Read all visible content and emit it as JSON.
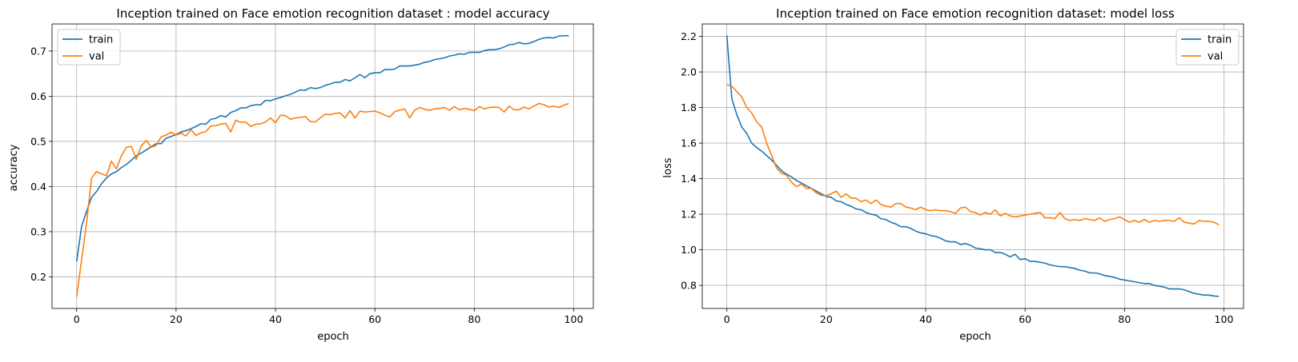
{
  "colors": {
    "train": "#1f77b4",
    "val": "#ff7f0e",
    "grid": "#b0b0b0"
  },
  "chart_data": [
    {
      "type": "line",
      "title": "Inception trained on Face emotion recognition dataset : model accuracy",
      "xlabel": "epoch",
      "ylabel": "accuracy",
      "xlim": [
        -4.95,
        103.95
      ],
      "ylim": [
        0.13,
        0.76
      ],
      "xticks": [
        0,
        20,
        40,
        60,
        80,
        100
      ],
      "yticks": [
        0.2,
        0.3,
        0.4,
        0.5,
        0.6,
        0.7
      ],
      "grid": true,
      "legend": "top-left",
      "series": [
        {
          "name": "train",
          "values": [
            0.234,
            0.312,
            0.345,
            0.376,
            0.389,
            0.406,
            0.419,
            0.428,
            0.433,
            0.442,
            0.449,
            0.458,
            0.468,
            0.474,
            0.481,
            0.488,
            0.495,
            0.495,
            0.507,
            0.511,
            0.515,
            0.521,
            0.524,
            0.528,
            0.533,
            0.539,
            0.538,
            0.549,
            0.551,
            0.557,
            0.554,
            0.564,
            0.568,
            0.574,
            0.574,
            0.579,
            0.581,
            0.581,
            0.591,
            0.59,
            0.594,
            0.597,
            0.601,
            0.604,
            0.609,
            0.614,
            0.613,
            0.619,
            0.617,
            0.619,
            0.624,
            0.627,
            0.631,
            0.631,
            0.637,
            0.634,
            0.641,
            0.648,
            0.641,
            0.65,
            0.652,
            0.652,
            0.659,
            0.659,
            0.66,
            0.667,
            0.667,
            0.667,
            0.669,
            0.671,
            0.675,
            0.677,
            0.681,
            0.683,
            0.685,
            0.689,
            0.691,
            0.694,
            0.693,
            0.697,
            0.697,
            0.697,
            0.701,
            0.703,
            0.703,
            0.705,
            0.709,
            0.714,
            0.715,
            0.719,
            0.716,
            0.717,
            0.721,
            0.726,
            0.729,
            0.73,
            0.729,
            0.733,
            0.734,
            0.734
          ]
        },
        {
          "name": "val",
          "values": [
            0.156,
            0.238,
            0.32,
            0.419,
            0.433,
            0.428,
            0.424,
            0.456,
            0.439,
            0.468,
            0.487,
            0.489,
            0.46,
            0.49,
            0.502,
            0.487,
            0.491,
            0.51,
            0.514,
            0.52,
            0.514,
            0.518,
            0.512,
            0.526,
            0.513,
            0.519,
            0.522,
            0.534,
            0.535,
            0.538,
            0.54,
            0.521,
            0.547,
            0.542,
            0.543,
            0.533,
            0.538,
            0.539,
            0.543,
            0.552,
            0.541,
            0.558,
            0.557,
            0.549,
            0.552,
            0.553,
            0.555,
            0.544,
            0.543,
            0.552,
            0.56,
            0.559,
            0.562,
            0.563,
            0.552,
            0.568,
            0.552,
            0.567,
            0.565,
            0.566,
            0.567,
            0.563,
            0.558,
            0.554,
            0.566,
            0.569,
            0.572,
            0.552,
            0.569,
            0.575,
            0.571,
            0.569,
            0.572,
            0.573,
            0.575,
            0.569,
            0.577,
            0.57,
            0.573,
            0.571,
            0.568,
            0.577,
            0.572,
            0.575,
            0.576,
            0.575,
            0.565,
            0.578,
            0.57,
            0.57,
            0.576,
            0.572,
            0.578,
            0.584,
            0.581,
            0.576,
            0.578,
            0.575,
            0.58,
            0.584
          ]
        }
      ]
    },
    {
      "type": "line",
      "title": "Inception trained on  Face emotion recognition dataset: model loss",
      "xlabel": "epoch",
      "ylabel": "loss",
      "xlim": [
        -4.95,
        103.95
      ],
      "ylim": [
        0.67,
        2.27
      ],
      "xticks": [
        0,
        20,
        40,
        60,
        80,
        100
      ],
      "yticks": [
        0.8,
        1.0,
        1.2,
        1.4,
        1.6,
        1.8,
        2.0,
        2.2
      ],
      "grid": true,
      "legend": "top-right",
      "series": [
        {
          "name": "train",
          "values": [
            2.205,
            1.85,
            1.76,
            1.69,
            1.655,
            1.6,
            1.575,
            1.555,
            1.53,
            1.505,
            1.475,
            1.445,
            1.425,
            1.41,
            1.39,
            1.375,
            1.36,
            1.345,
            1.33,
            1.315,
            1.3,
            1.295,
            1.275,
            1.27,
            1.255,
            1.245,
            1.23,
            1.225,
            1.21,
            1.2,
            1.195,
            1.175,
            1.17,
            1.155,
            1.145,
            1.13,
            1.13,
            1.12,
            1.105,
            1.095,
            1.09,
            1.08,
            1.075,
            1.065,
            1.05,
            1.045,
            1.045,
            1.03,
            1.035,
            1.025,
            1.01,
            1.005,
            1.0,
            1.0,
            0.985,
            0.985,
            0.975,
            0.96,
            0.975,
            0.945,
            0.95,
            0.935,
            0.935,
            0.93,
            0.925,
            0.915,
            0.91,
            0.905,
            0.905,
            0.9,
            0.895,
            0.885,
            0.88,
            0.87,
            0.87,
            0.865,
            0.855,
            0.85,
            0.845,
            0.835,
            0.83,
            0.825,
            0.82,
            0.815,
            0.81,
            0.81,
            0.8,
            0.795,
            0.79,
            0.78,
            0.78,
            0.78,
            0.775,
            0.765,
            0.755,
            0.75,
            0.745,
            0.745,
            0.74,
            0.738
          ]
        },
        {
          "name": "val",
          "values": [
            1.93,
            1.92,
            1.89,
            1.86,
            1.8,
            1.77,
            1.72,
            1.69,
            1.6,
            1.53,
            1.46,
            1.43,
            1.42,
            1.38,
            1.355,
            1.37,
            1.345,
            1.345,
            1.32,
            1.305,
            1.305,
            1.315,
            1.33,
            1.295,
            1.315,
            1.29,
            1.29,
            1.27,
            1.28,
            1.26,
            1.28,
            1.255,
            1.245,
            1.24,
            1.26,
            1.26,
            1.24,
            1.235,
            1.225,
            1.24,
            1.225,
            1.22,
            1.225,
            1.22,
            1.22,
            1.215,
            1.205,
            1.235,
            1.24,
            1.215,
            1.21,
            1.195,
            1.21,
            1.2,
            1.225,
            1.19,
            1.205,
            1.19,
            1.185,
            1.19,
            1.195,
            1.2,
            1.205,
            1.21,
            1.18,
            1.18,
            1.175,
            1.21,
            1.175,
            1.165,
            1.17,
            1.165,
            1.175,
            1.17,
            1.165,
            1.18,
            1.16,
            1.17,
            1.175,
            1.185,
            1.17,
            1.155,
            1.165,
            1.155,
            1.17,
            1.155,
            1.165,
            1.16,
            1.165,
            1.165,
            1.16,
            1.18,
            1.155,
            1.15,
            1.145,
            1.165,
            1.16,
            1.16,
            1.155,
            1.14
          ]
        }
      ]
    }
  ]
}
